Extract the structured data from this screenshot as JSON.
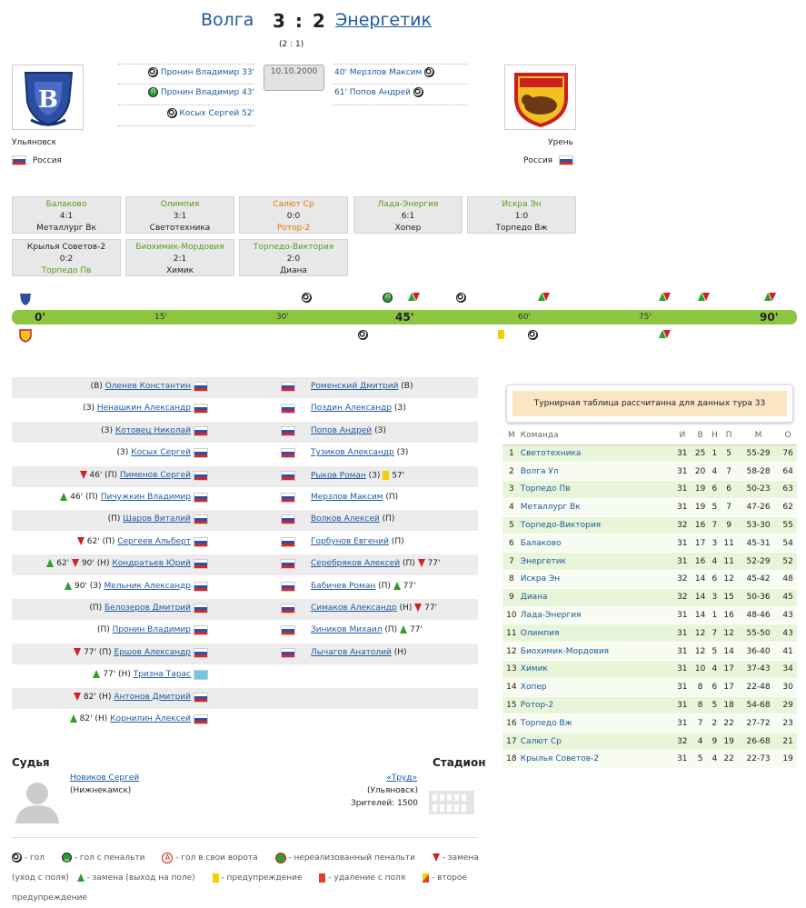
{
  "header": {
    "home_team": "Волга",
    "score": "3 : 2",
    "away_team": "Энергетик",
    "halftime": "(2 : 1)",
    "date": "10.10.2000"
  },
  "home": {
    "city": "Ульяновск",
    "country": "Россия",
    "scorers": [
      "Пронин Владимир 33'",
      "Пронин Владимир 43'",
      "Косых Сергей 52'"
    ]
  },
  "away": {
    "city": "Урень",
    "country": "Россия",
    "scorers": [
      "40' Мерзлов Максим",
      "61' Попов Андрей"
    ]
  },
  "other_results": [
    {
      "home": "Балаково",
      "score": "4:1",
      "away": "Металлург Вк"
    },
    {
      "home": "Олимпия",
      "score": "3:1",
      "away": "Светотехника"
    },
    {
      "home": "Салют Ср",
      "score": "0:0",
      "away": "Ротор-2"
    },
    {
      "home": "Лада-Энергия",
      "score": "6:1",
      "away": "Хопер"
    },
    {
      "home": "Искра Эн",
      "score": "1:0",
      "away": "Торпедо Вж"
    },
    {
      "home": "Крылья Советов-2",
      "score": "0:2",
      "away": "Торпедо Пв"
    },
    {
      "home": "Биохимик-Мордовия",
      "score": "2:1",
      "away": "Химик"
    },
    {
      "home": "Торпедо-Виктория",
      "score": "2:0",
      "away": "Диана"
    }
  ],
  "timeline": {
    "labels": [
      "0'",
      "15'",
      "30'",
      "45'",
      "60'",
      "75'",
      "90'"
    ]
  },
  "lineup_home": [
    {
      "pre": "(В)",
      "name": "Оленев Константин",
      "post": ""
    },
    {
      "pre": "(З)",
      "name": "Ненашкин Александр",
      "post": ""
    },
    {
      "pre": "(З)",
      "name": "Котовец Николай",
      "post": ""
    },
    {
      "pre": "(З)",
      "name": "Косых Сергей",
      "post": ""
    },
    {
      "pre": "46' (П)",
      "name": "Пименов Сергей",
      "post": ""
    },
    {
      "pre": "46' (П)",
      "name": "Пичужкин Владимир",
      "post": ""
    },
    {
      "pre": "(П)",
      "name": "Шаров Виталий",
      "post": ""
    },
    {
      "pre": "62' (П)",
      "name": "Сергеев Альберт",
      "post": ""
    },
    {
      "pre": "62'",
      "pre2": "90' (Н)",
      "name": "Кондратьев Юрий",
      "post": ""
    },
    {
      "pre": "90' (З)",
      "name": "Мельник Александр",
      "post": ""
    },
    {
      "pre": "(П)",
      "name": "Белозеров Дмитрий",
      "post": ""
    },
    {
      "pre": "(П)",
      "name": "Пронин Владимир",
      "post": ""
    },
    {
      "pre": "77' (П)",
      "name": "Ершов Александр",
      "post": ""
    },
    {
      "pre": "77' (Н)",
      "name": "Тризна Тарас",
      "post": ""
    },
    {
      "pre": "82' (Н)",
      "name": "Антонов Дмитрий",
      "post": ""
    },
    {
      "pre": "82' (Н)",
      "name": "Корнилин Алексей",
      "post": ""
    }
  ],
  "lineup_away": [
    {
      "name": "Роменский Дмитрий",
      "post": "(В)"
    },
    {
      "name": "Поздин Александр",
      "post": "(З)"
    },
    {
      "name": "Попов Андрей",
      "post": "(З)"
    },
    {
      "name": "Тузиков Александр",
      "post": "(З)"
    },
    {
      "name": "Рыков Роман",
      "post": "(З)",
      "post2": "57'"
    },
    {
      "name": "Мерзлов Максим",
      "post": "(П)"
    },
    {
      "name": "Волков Алексей",
      "post": "(П)"
    },
    {
      "name": "Горбунов Евгений",
      "post": "(П)"
    },
    {
      "name": "Серебряков Алексей",
      "post": "(П)",
      "post2": "77'"
    },
    {
      "name": "Бабичев Роман",
      "post": "(П)",
      "post2": "77'"
    },
    {
      "name": "Симаков Александр",
      "post": "(Н)",
      "post2": "77'"
    },
    {
      "name": "Зиников Михаил",
      "post": "(П)",
      "post2": "77'"
    },
    {
      "name": "Лычагов Анатолий",
      "post": "(Н)"
    }
  ],
  "referee": {
    "title": "Судья",
    "name": "Новиков Сергей",
    "city": "(Нижнекамск)"
  },
  "stadium": {
    "title": "Стадион",
    "name": "«Труд»",
    "city": "(Ульяновск)",
    "spectators": "Зрителей: 1500"
  },
  "standings": {
    "note": "Турнирная таблица рассчитанна для данных тура 33",
    "headers": [
      "М",
      "Команда",
      "И",
      "В",
      "Н",
      "П",
      "М",
      "О"
    ],
    "rows": [
      [
        "1",
        "Светотехника",
        "31",
        "25",
        "1",
        "5",
        "55-29",
        "76"
      ],
      [
        "2",
        "Волга Ул",
        "31",
        "20",
        "4",
        "7",
        "58-28",
        "64"
      ],
      [
        "3",
        "Торпедо Пв",
        "31",
        "19",
        "6",
        "6",
        "50-23",
        "63"
      ],
      [
        "4",
        "Металлург Вк",
        "31",
        "19",
        "5",
        "7",
        "47-26",
        "62"
      ],
      [
        "5",
        "Торпедо-Виктория",
        "32",
        "16",
        "7",
        "9",
        "53-30",
        "55"
      ],
      [
        "6",
        "Балаково",
        "31",
        "17",
        "3",
        "11",
        "45-31",
        "54"
      ],
      [
        "7",
        "Энергетик",
        "31",
        "16",
        "4",
        "11",
        "52-29",
        "52"
      ],
      [
        "8",
        "Искра Эн",
        "32",
        "14",
        "6",
        "12",
        "45-42",
        "48"
      ],
      [
        "9",
        "Диана",
        "32",
        "14",
        "3",
        "15",
        "50-36",
        "45"
      ],
      [
        "10",
        "Лада-Энергия",
        "31",
        "14",
        "1",
        "16",
        "48-46",
        "43"
      ],
      [
        "11",
        "Олимпия",
        "31",
        "12",
        "7",
        "12",
        "55-50",
        "43"
      ],
      [
        "12",
        "Биохимик-Мордовия",
        "31",
        "12",
        "5",
        "14",
        "36-40",
        "41"
      ],
      [
        "13",
        "Химик",
        "31",
        "10",
        "4",
        "17",
        "37-43",
        "34"
      ],
      [
        "14",
        "Хопер",
        "31",
        "8",
        "6",
        "17",
        "22-48",
        "30"
      ],
      [
        "15",
        "Ротор-2",
        "31",
        "8",
        "5",
        "18",
        "54-68",
        "29"
      ],
      [
        "16",
        "Торпедо Вж",
        "31",
        "7",
        "2",
        "22",
        "27-72",
        "23"
      ],
      [
        "17",
        "Салют Ср",
        "32",
        "4",
        "9",
        "19",
        "26-68",
        "21"
      ],
      [
        "18",
        "Крылья Советов-2",
        "31",
        "5",
        "4",
        "22",
        "22-73",
        "19"
      ]
    ]
  },
  "legend": {
    "goal": "- гол",
    "penalty": "- гол с пенальти",
    "own_goal": "- гол в свои ворота",
    "missed_penalty": "- нереализованный пенальти",
    "sub_out": "- замена (уход с поля)",
    "sub_in": "- замена (выход на поле)",
    "yellow": "- предупреждение",
    "red": "- удаление с поля",
    "second_yellow": "- второе предупреждение"
  }
}
